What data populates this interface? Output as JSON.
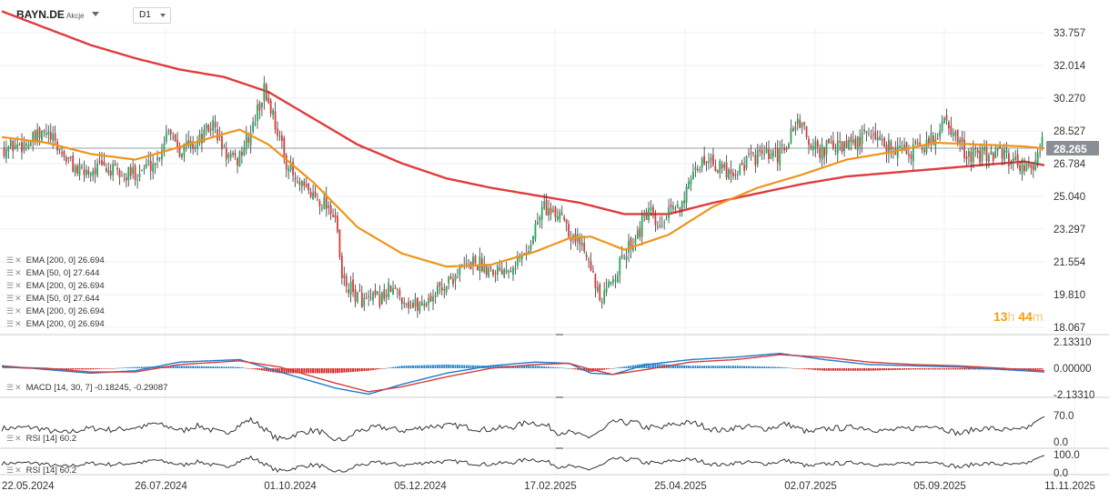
{
  "header": {
    "symbol": "BAYN.DE",
    "instrument_type": "Akcje",
    "timeframe": "D1"
  },
  "countdown": {
    "hours": "13",
    "hours_unit": "h",
    "minutes": "44",
    "minutes_unit": "m"
  },
  "colors": {
    "bull": "#26a65b",
    "bear": "#d63b3b",
    "ema200": "#e03c3c",
    "ema50": "#f0941c",
    "macd_pos": "#1e82c8",
    "macd_neg": "#d0221f",
    "macd_line": "#1e7ccd",
    "signal_line": "#d63b3b",
    "price_label_bg": "#8a8f96",
    "rsi_line": "#333333"
  },
  "legends": {
    "overlays": [
      "EMA [200, 0] 26.694",
      "EMA [50, 0] 27.644",
      "EMA [200, 0] 26.694",
      "EMA [50, 0] 27.644",
      "EMA [200, 0] 26.694",
      "EMA [200, 0] 26.694"
    ],
    "macd": "MACD [14, 30, 7] -0.18245, -0.29087",
    "rsi1": "RSI [14] 60.2",
    "rsi2": "RSI [14] 60.2"
  },
  "chart_data": {
    "type": "candlestick",
    "price_axis": {
      "ticks": [
        "33.757",
        "32.014",
        "30.270",
        "28.527",
        "26.784",
        "25.040",
        "23.297",
        "21.554",
        "19.810",
        "18.067"
      ],
      "range": [
        18.067,
        33.757
      ]
    },
    "current_price": "28.265",
    "x_tick_labels": [
      "22.05.2024",
      "26.07.2024",
      "01.10.2024",
      "05.12.2024",
      "17.02.2025",
      "25.04.2025",
      "02.07.2025",
      "05.09.2025",
      "11.11.2025"
    ],
    "close_path": [
      [
        0,
        27.6
      ],
      [
        12,
        27.9
      ],
      [
        20,
        28.4
      ],
      [
        28,
        27.2
      ],
      [
        35,
        26.3
      ],
      [
        45,
        26.6
      ],
      [
        55,
        26.1
      ],
      [
        62,
        26.4
      ],
      [
        70,
        27.0
      ],
      [
        75,
        28.8
      ],
      [
        80,
        27.6
      ],
      [
        88,
        27.9
      ],
      [
        95,
        28.9
      ],
      [
        100,
        27.4
      ],
      [
        105,
        26.8
      ],
      [
        112,
        28.4
      ],
      [
        118,
        30.7
      ],
      [
        122,
        29.4
      ],
      [
        127,
        27.2
      ],
      [
        133,
        25.6
      ],
      [
        140,
        25.1
      ],
      [
        147,
        24.6
      ],
      [
        150,
        23.9
      ],
      [
        153,
        20.6
      ],
      [
        158,
        19.9
      ],
      [
        164,
        19.4
      ],
      [
        170,
        19.6
      ],
      [
        175,
        20.1
      ],
      [
        180,
        19.7
      ],
      [
        185,
        19.2
      ],
      [
        190,
        19.4
      ],
      [
        195,
        19.9
      ],
      [
        200,
        20.4
      ],
      [
        206,
        21.1
      ],
      [
        212,
        21.6
      ],
      [
        218,
        21.3
      ],
      [
        224,
        21.2
      ],
      [
        230,
        21.5
      ],
      [
        236,
        22.0
      ],
      [
        240,
        23.4
      ],
      [
        244,
        24.6
      ],
      [
        248,
        23.9
      ],
      [
        252,
        24.3
      ],
      [
        256,
        23.0
      ],
      [
        260,
        22.6
      ],
      [
        264,
        22.1
      ],
      [
        267,
        20.1
      ],
      [
        270,
        19.3
      ],
      [
        274,
        20.6
      ],
      [
        279,
        21.6
      ],
      [
        283,
        22.6
      ],
      [
        287,
        23.3
      ],
      [
        291,
        24.3
      ],
      [
        295,
        23.1
      ],
      [
        299,
        23.9
      ],
      [
        303,
        24.4
      ],
      [
        307,
        25.1
      ],
      [
        310,
        25.6
      ],
      [
        313,
        26.6
      ],
      [
        318,
        27.2
      ],
      [
        323,
        26.5
      ],
      [
        330,
        26.4
      ],
      [
        337,
        27.1
      ],
      [
        343,
        27.2
      ],
      [
        349,
        27.1
      ],
      [
        354,
        28.0
      ],
      [
        358,
        29.2
      ],
      [
        362,
        28.2
      ],
      [
        367,
        27.4
      ],
      [
        373,
        27.7
      ],
      [
        378,
        27.6
      ],
      [
        385,
        27.9
      ],
      [
        391,
        28.5
      ],
      [
        397,
        27.8
      ],
      [
        403,
        27.6
      ],
      [
        409,
        27.4
      ],
      [
        415,
        27.7
      ],
      [
        421,
        28.4
      ],
      [
        425,
        29.3
      ],
      [
        429,
        28.1
      ],
      [
        433,
        27.4
      ],
      [
        439,
        27.1
      ],
      [
        445,
        27.4
      ],
      [
        451,
        27.2
      ],
      [
        458,
        26.8
      ],
      [
        464,
        26.4
      ],
      [
        467,
        27.4
      ],
      [
        469,
        28.3
      ]
    ],
    "ema50_path": [
      [
        0,
        28.2
      ],
      [
        20,
        27.9
      ],
      [
        40,
        27.3
      ],
      [
        60,
        27.0
      ],
      [
        75,
        27.5
      ],
      [
        95,
        28.2
      ],
      [
        107,
        28.6
      ],
      [
        120,
        27.8
      ],
      [
        140,
        25.8
      ],
      [
        160,
        23.4
      ],
      [
        180,
        22.0
      ],
      [
        200,
        21.3
      ],
      [
        220,
        21.4
      ],
      [
        240,
        22.1
      ],
      [
        255,
        22.8
      ],
      [
        265,
        22.9
      ],
      [
        280,
        22.2
      ],
      [
        300,
        23.0
      ],
      [
        320,
        24.5
      ],
      [
        340,
        25.5
      ],
      [
        360,
        26.2
      ],
      [
        380,
        27.0
      ],
      [
        400,
        27.4
      ],
      [
        420,
        27.9
      ],
      [
        440,
        27.8
      ],
      [
        460,
        27.7
      ],
      [
        469,
        27.6
      ]
    ],
    "ema200_path": [
      [
        0,
        34.9
      ],
      [
        20,
        34.0
      ],
      [
        40,
        33.1
      ],
      [
        60,
        32.4
      ],
      [
        80,
        31.8
      ],
      [
        100,
        31.4
      ],
      [
        120,
        30.6
      ],
      [
        140,
        29.2
      ],
      [
        160,
        27.8
      ],
      [
        180,
        26.8
      ],
      [
        200,
        26.0
      ],
      [
        220,
        25.5
      ],
      [
        240,
        25.1
      ],
      [
        260,
        24.7
      ],
      [
        280,
        24.1
      ],
      [
        300,
        24.1
      ],
      [
        320,
        24.7
      ],
      [
        340,
        25.2
      ],
      [
        360,
        25.7
      ],
      [
        380,
        26.1
      ],
      [
        400,
        26.3
      ],
      [
        420,
        26.5
      ],
      [
        440,
        26.7
      ],
      [
        460,
        26.9
      ],
      [
        469,
        26.7
      ]
    ],
    "macd": {
      "axis_ticks": [
        "2.13310",
        "0.00000",
        "-2.13310"
      ],
      "range": [
        -2.1331,
        2.1331
      ],
      "macd_path": [
        [
          0,
          0.2
        ],
        [
          20,
          -0.1
        ],
        [
          40,
          -0.4
        ],
        [
          60,
          -0.2
        ],
        [
          80,
          0.5
        ],
        [
          107,
          0.7
        ],
        [
          125,
          -0.3
        ],
        [
          150,
          -1.6
        ],
        [
          165,
          -2.1
        ],
        [
          180,
          -1.3
        ],
        [
          200,
          -0.4
        ],
        [
          220,
          0.2
        ],
        [
          240,
          0.5
        ],
        [
          255,
          0.4
        ],
        [
          265,
          -0.4
        ],
        [
          275,
          -0.5
        ],
        [
          290,
          0.3
        ],
        [
          310,
          0.7
        ],
        [
          330,
          0.9
        ],
        [
          350,
          1.2
        ],
        [
          370,
          0.7
        ],
        [
          390,
          0.3
        ],
        [
          410,
          0.2
        ],
        [
          430,
          0.1
        ],
        [
          450,
          -0.1
        ],
        [
          469,
          -0.3
        ]
      ],
      "signal_path": [
        [
          0,
          0.1
        ],
        [
          20,
          0.0
        ],
        [
          40,
          -0.3
        ],
        [
          60,
          -0.3
        ],
        [
          80,
          0.3
        ],
        [
          107,
          0.6
        ],
        [
          125,
          0.1
        ],
        [
          150,
          -1.2
        ],
        [
          165,
          -1.9
        ],
        [
          180,
          -1.5
        ],
        [
          200,
          -0.7
        ],
        [
          220,
          0.0
        ],
        [
          240,
          0.3
        ],
        [
          255,
          0.4
        ],
        [
          265,
          -0.1
        ],
        [
          275,
          -0.5
        ],
        [
          290,
          -0.1
        ],
        [
          310,
          0.5
        ],
        [
          330,
          0.7
        ],
        [
          350,
          1.1
        ],
        [
          370,
          0.9
        ],
        [
          390,
          0.5
        ],
        [
          410,
          0.3
        ],
        [
          430,
          0.2
        ],
        [
          450,
          0.0
        ],
        [
          469,
          -0.2
        ]
      ]
    },
    "rsi1": {
      "axis_ticks": [
        "70.0",
        "0.0"
      ],
      "range": [
        0,
        70
      ]
    },
    "rsi2": {
      "axis_ticks": [
        "100.0",
        "0.0"
      ],
      "range": [
        0,
        100
      ]
    }
  }
}
